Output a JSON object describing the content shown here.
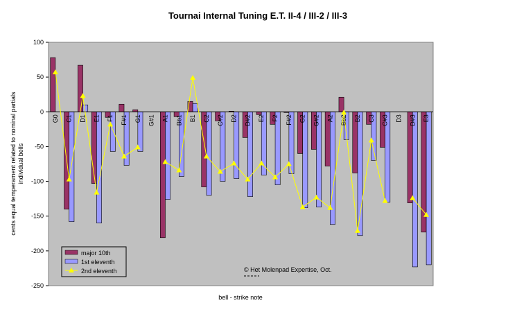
{
  "chart_data": {
    "type": "bar",
    "title": "Tournai Internal Tuning E.T. II-4 / III-2 / III-3",
    "xlabel": "bell - strike note",
    "ylabel_line1": "cents equal temperament related to nominal partials",
    "ylabel_line2": "individual bells",
    "ylim": [
      -250,
      100
    ],
    "yticks": [
      100,
      50,
      0,
      -50,
      -100,
      -150,
      -200,
      -250
    ],
    "grid": false,
    "legend_position": "bottom-left",
    "annotation": "© Het Molenpad Expertise, Oct.",
    "categories": [
      "G0",
      "C1",
      "D1",
      "E1",
      "F1",
      "F#1",
      "G1",
      "G#1",
      "A1",
      "Bb1",
      "B1",
      "C2",
      "C#2",
      "D2",
      "D#2",
      "E2",
      "F2",
      "F#2",
      "G2",
      "G#2",
      "A2",
      "Bb2",
      "B2",
      "C3",
      "C#3",
      "D3",
      "D#3",
      "E3"
    ],
    "series": [
      {
        "name": "major 10th",
        "type": "bar",
        "color": "#993366",
        "values": [
          78,
          -140,
          67,
          -103,
          -8,
          11,
          3,
          null,
          -181,
          -7,
          15,
          -108,
          -13,
          1,
          -37,
          -4,
          -18,
          -1,
          -60,
          -54,
          -78,
          21,
          -88,
          -18,
          -51,
          null,
          -131,
          -173
        ]
      },
      {
        "name": "1st eleventh",
        "type": "bar",
        "color": "#9999ff",
        "values": [
          null,
          -158,
          10,
          -160,
          -57,
          -77,
          -57,
          null,
          -126,
          -93,
          12,
          -120,
          -100,
          -96,
          -122,
          -91,
          -105,
          -89,
          -138,
          -137,
          -162,
          -40,
          -178,
          -70,
          -130,
          null,
          -223,
          -220
        ]
      },
      {
        "name": "2nd eleventh",
        "type": "line",
        "color": "#ffff00",
        "values": [
          57,
          -97,
          23,
          -116,
          -18,
          -64,
          -51,
          null,
          -72,
          -84,
          49,
          -64,
          -86,
          -74,
          -97,
          -74,
          -94,
          -75,
          -137,
          -123,
          -138,
          -1,
          -171,
          -41,
          -128,
          null,
          -124,
          -148
        ]
      }
    ]
  }
}
